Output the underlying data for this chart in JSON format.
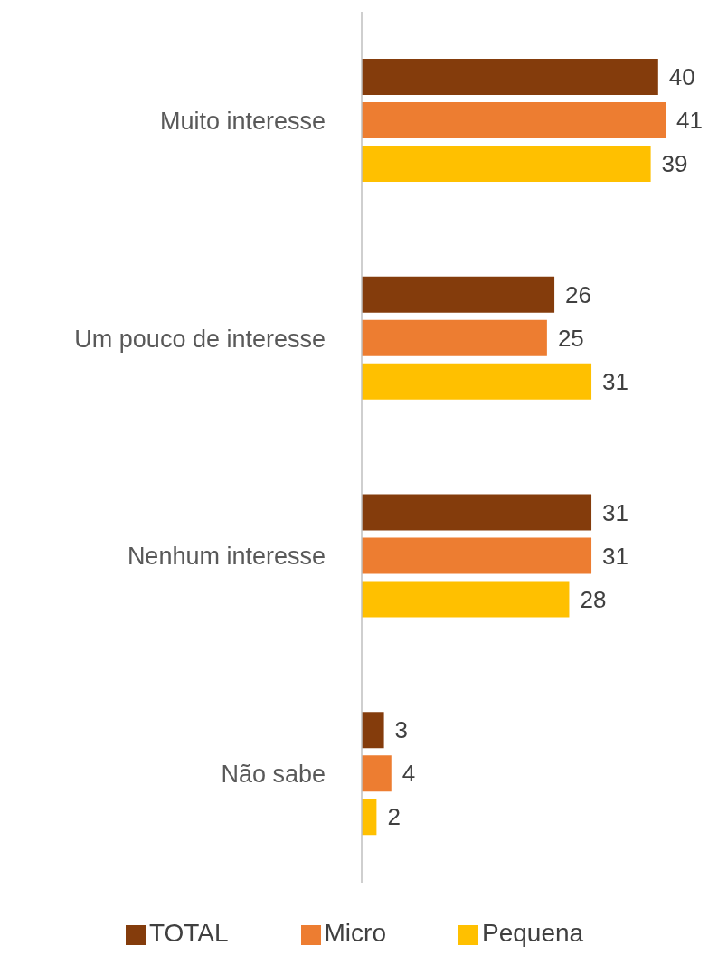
{
  "chart_data": {
    "type": "bar",
    "orientation": "horizontal",
    "categories": [
      "Muito interesse",
      "Um pouco de interesse",
      "Nenhum interesse",
      "Não sabe"
    ],
    "series": [
      {
        "name": "TOTAL",
        "color": "#843c0c",
        "values": [
          40,
          26,
          31,
          3
        ]
      },
      {
        "name": "Micro",
        "color": "#ed7d31",
        "values": [
          41,
          25,
          31,
          4
        ]
      },
      {
        "name": "Pequena",
        "color": "#ffc000",
        "values": [
          39,
          31,
          28,
          2
        ]
      }
    ],
    "data_labels": true,
    "legend": "bottom",
    "grid": false
  }
}
